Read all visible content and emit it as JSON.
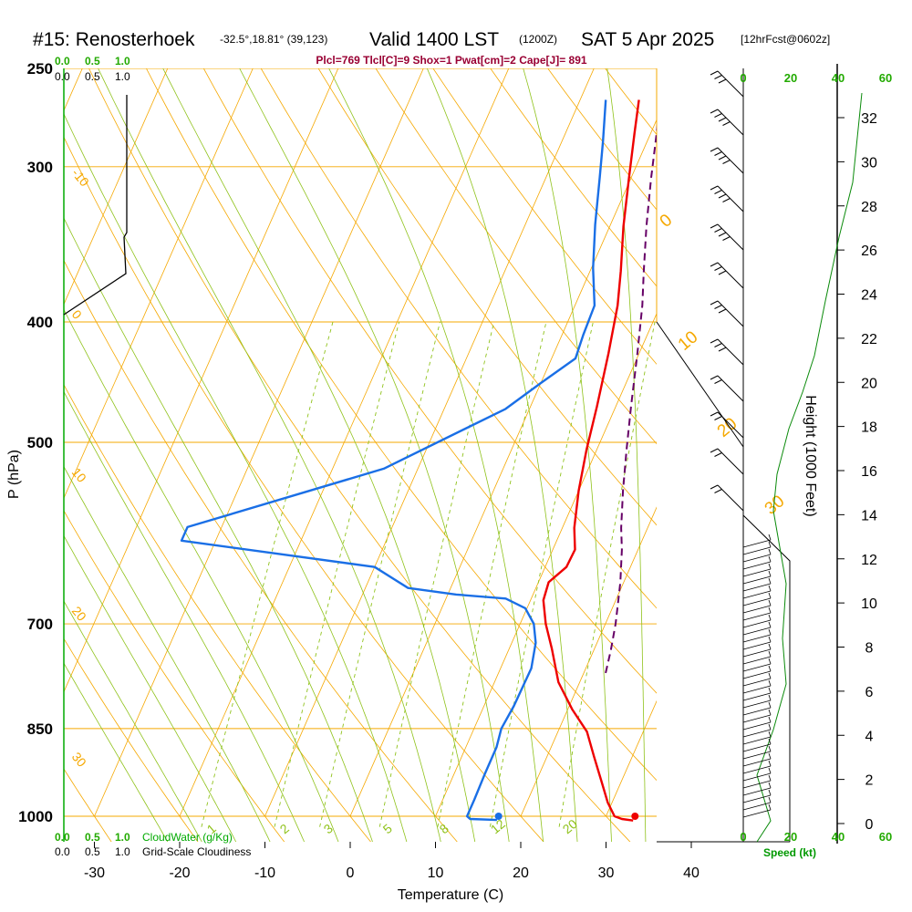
{
  "title": {
    "station": "#15: Renosterhoek",
    "coords": "-32.5°,18.81° (39,123)",
    "valid": "Valid 1400 LST",
    "utc": "(1200Z)",
    "date": "SAT 5 Apr 2025",
    "forecast": "[12hrFcst@0602z]"
  },
  "params": "Plcl=769 Tlcl[C]=9 Shox=1 Pwat[cm]=2 Cape[J]= 891",
  "colors": {
    "isobar": "#f5a800",
    "dry_adiabat": "#f5a800",
    "moist_adiabat": "#8fc21a",
    "mixing_ratio": "#8fc21a",
    "temperature": "#ee0000",
    "dewpoint": "#1a6fe6",
    "parcel": "#660066",
    "cloud_water": "#00aa00",
    "height_curve": "#0a8a0a",
    "params_text": "#990033",
    "scale_green": "#22aa00",
    "speed_green": "#009900"
  },
  "chart_data": {
    "type": "line",
    "title": "Skew-T sounding",
    "xlabel": "Temperature (C)",
    "ylabel": "P (hPa)",
    "y2label": "Height (1000 Feet)",
    "pressure_levels": [
      250,
      300,
      400,
      500,
      700,
      850,
      1000
    ],
    "pressure_tick_labels": [
      "250",
      "300",
      "400",
      "500",
      "700",
      "850",
      "1000"
    ],
    "temperature_ticks": [
      -30,
      -20,
      -10,
      0,
      10,
      20,
      30,
      40
    ],
    "temperature_tick_labels": [
      "-30",
      "-20",
      "-10",
      "0",
      "10",
      "20",
      "30",
      "40"
    ],
    "height_ticks": [
      0,
      2,
      4,
      6,
      8,
      10,
      12,
      14,
      16,
      18,
      20,
      22,
      24,
      26,
      28,
      30,
      32
    ],
    "height_tick_labels": [
      "0",
      "2",
      "4",
      "6",
      "8",
      "10",
      "12",
      "14",
      "16",
      "18",
      "20",
      "22",
      "24",
      "26",
      "28",
      "30",
      "32"
    ],
    "dry_adiabat_labels": [
      "-10",
      "0",
      "10",
      "20",
      "30"
    ],
    "moist_adiabat_labels": [
      "0",
      "10",
      "20",
      "30"
    ],
    "mixing_ratio_labels": [
      "1",
      "2",
      "3",
      "5",
      "8",
      "12",
      "20"
    ],
    "scale_top_green": [
      "0.0",
      "0.5",
      "1.0"
    ],
    "scale_top_black": [
      "0.0",
      "0.5",
      "1.0"
    ],
    "scale_bottom_green": [
      "0.0",
      "0.5",
      "1.0"
    ],
    "scale_bottom_black": [
      "0.0",
      "0.5",
      "1.0"
    ],
    "cloud_water_label": "CloudWater (g/Kg)",
    "cloudiness_label": "Grid-Scale Cloudiness",
    "speed_scale_labels": [
      "0",
      "20",
      "40",
      "60"
    ],
    "speed_label": "Speed (kt)",
    "series": [
      {
        "name": "Temperature",
        "points": [
          [
            -3.1,
            265
          ],
          [
            -1.9,
            282
          ],
          [
            -0.2,
            307
          ],
          [
            1.6,
            335
          ],
          [
            3.6,
            364
          ],
          [
            5.0,
            388
          ],
          [
            6.4,
            424
          ],
          [
            7.8,
            468
          ],
          [
            8.8,
            507
          ],
          [
            10.0,
            547
          ],
          [
            11.4,
            586
          ],
          [
            12.6,
            610
          ],
          [
            12.5,
            630
          ],
          [
            11.2,
            648
          ],
          [
            11.5,
            670
          ],
          [
            13.0,
            700
          ],
          [
            15.0,
            733
          ],
          [
            17.5,
            780
          ],
          [
            20.5,
            820
          ],
          [
            23.4,
            855
          ],
          [
            25.5,
            895
          ],
          [
            27.8,
            940
          ],
          [
            29.5,
            975
          ],
          [
            31.0,
            1000
          ],
          [
            32.0,
            1005
          ],
          [
            33.4,
            1008
          ]
        ]
      },
      {
        "name": "Dewpoint",
        "points": [
          [
            -7.0,
            265
          ],
          [
            -5.2,
            286
          ],
          [
            -3.7,
            306
          ],
          [
            -1.8,
            334
          ],
          [
            0.2,
            362
          ],
          [
            2.3,
            388
          ],
          [
            2.5,
            410
          ],
          [
            2.8,
            428
          ],
          [
            0.0,
            448
          ],
          [
            -2.8,
            470
          ],
          [
            -14.0,
            525
          ],
          [
            -34.0,
            585
          ],
          [
            -34.0,
            600
          ],
          [
            -10.0,
            630
          ],
          [
            -5.0,
            655
          ],
          [
            1.0,
            663
          ],
          [
            7.0,
            668
          ],
          [
            9.8,
            680
          ],
          [
            11.6,
            700
          ],
          [
            12.8,
            725
          ],
          [
            13.6,
            760
          ],
          [
            13.5,
            815
          ],
          [
            13.2,
            850
          ],
          [
            13.6,
            880
          ],
          [
            13.6,
            925
          ],
          [
            13.7,
            970
          ],
          [
            13.7,
            1000
          ],
          [
            14.2,
            1005
          ],
          [
            17.4,
            1007
          ]
        ]
      },
      {
        "name": "Parcel",
        "points": [
          [
            -0.6,
            265
          ],
          [
            0.7,
            282
          ],
          [
            2.4,
            307
          ],
          [
            4.3,
            335
          ],
          [
            6.3,
            364
          ],
          [
            7.9,
            388
          ],
          [
            9.8,
            424
          ],
          [
            11.8,
            468
          ],
          [
            13.5,
            507
          ],
          [
            15.2,
            547
          ],
          [
            16.9,
            586
          ],
          [
            18.1,
            610
          ],
          [
            19.6,
            648
          ],
          [
            20.3,
            670
          ],
          [
            21.2,
            700
          ],
          [
            22.0,
            735
          ],
          [
            22.6,
            769
          ]
        ]
      }
    ],
    "surface_points": [
      {
        "name": "Temperature",
        "x": 33.4,
        "p": 1000
      },
      {
        "name": "Dewpoint",
        "x": 17.4,
        "p": 1000
      }
    ]
  }
}
